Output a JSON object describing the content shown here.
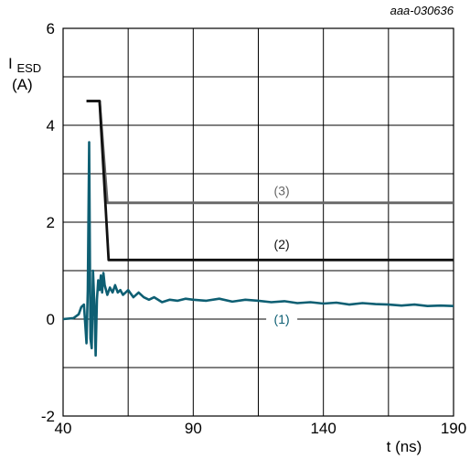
{
  "figure_id": "aaa-030636",
  "chart_data": {
    "type": "line",
    "title": "",
    "xlabel": "t (ns)",
    "ylabel": {
      "main": "I",
      "subscript": "ESD",
      "unit": "(A)"
    },
    "xlim": [
      40,
      190
    ],
    "ylim": [
      -2,
      6
    ],
    "x_ticks": [
      "40",
      "90",
      "140",
      "190"
    ],
    "x_tick_values": [
      40,
      90,
      140,
      190
    ],
    "y_ticks": [
      "-2",
      "0",
      "2",
      "4",
      "6"
    ],
    "y_tick_values": [
      -2,
      0,
      2,
      4,
      6
    ],
    "x_grid": [
      40,
      65,
      90,
      115,
      140,
      165,
      190
    ],
    "y_grid": [
      -2,
      -1,
      0,
      1,
      2,
      3,
      4,
      5,
      6
    ],
    "grid": true,
    "series": [
      {
        "name": "(3)",
        "color": "#666666",
        "x": [
          49,
          54,
          57,
          190
        ],
        "y": [
          4.5,
          4.5,
          2.4,
          2.4
        ]
      },
      {
        "name": "(2)",
        "color": "#111111",
        "x": [
          49,
          54,
          57.5,
          190
        ],
        "y": [
          4.5,
          4.5,
          1.22,
          1.22
        ]
      },
      {
        "name": "(1)",
        "color": "#0e5f73",
        "x": [
          40,
          44,
          46,
          47,
          48,
          48.5,
          49,
          49.5,
          50,
          50.5,
          51,
          51.5,
          52,
          52.5,
          53,
          53.5,
          54,
          54.5,
          55,
          55.5,
          56,
          57,
          58,
          59,
          60,
          61,
          62,
          63,
          64,
          65,
          67,
          69,
          71,
          73,
          75,
          78,
          81,
          84,
          87,
          90,
          95,
          100,
          105,
          110,
          115,
          120,
          125,
          130,
          135,
          140,
          145,
          150,
          155,
          160,
          165,
          170,
          175,
          180,
          185,
          190
        ],
        "y": [
          0.0,
          0.02,
          0.1,
          0.25,
          0.3,
          -0.1,
          -0.5,
          0.6,
          3.65,
          -0.4,
          -0.6,
          1.0,
          0.3,
          -0.75,
          0.4,
          0.8,
          0.6,
          0.9,
          0.55,
          0.95,
          0.7,
          0.5,
          0.65,
          0.55,
          0.7,
          0.55,
          0.6,
          0.5,
          0.55,
          0.6,
          0.45,
          0.55,
          0.45,
          0.4,
          0.45,
          0.35,
          0.4,
          0.38,
          0.42,
          0.4,
          0.38,
          0.42,
          0.36,
          0.4,
          0.38,
          0.35,
          0.37,
          0.33,
          0.35,
          0.32,
          0.34,
          0.3,
          0.33,
          0.31,
          0.3,
          0.28,
          0.3,
          0.27,
          0.28,
          0.27
        ]
      }
    ],
    "annotations": [
      {
        "text": "(3)",
        "x": 124,
        "y": 2.65,
        "color": "#666666"
      },
      {
        "text": "(2)",
        "x": 124,
        "y": 1.55,
        "color": "#111111"
      },
      {
        "text": "(1)",
        "x": 124,
        "y": 0.0,
        "color": "#0e5f73"
      }
    ]
  }
}
